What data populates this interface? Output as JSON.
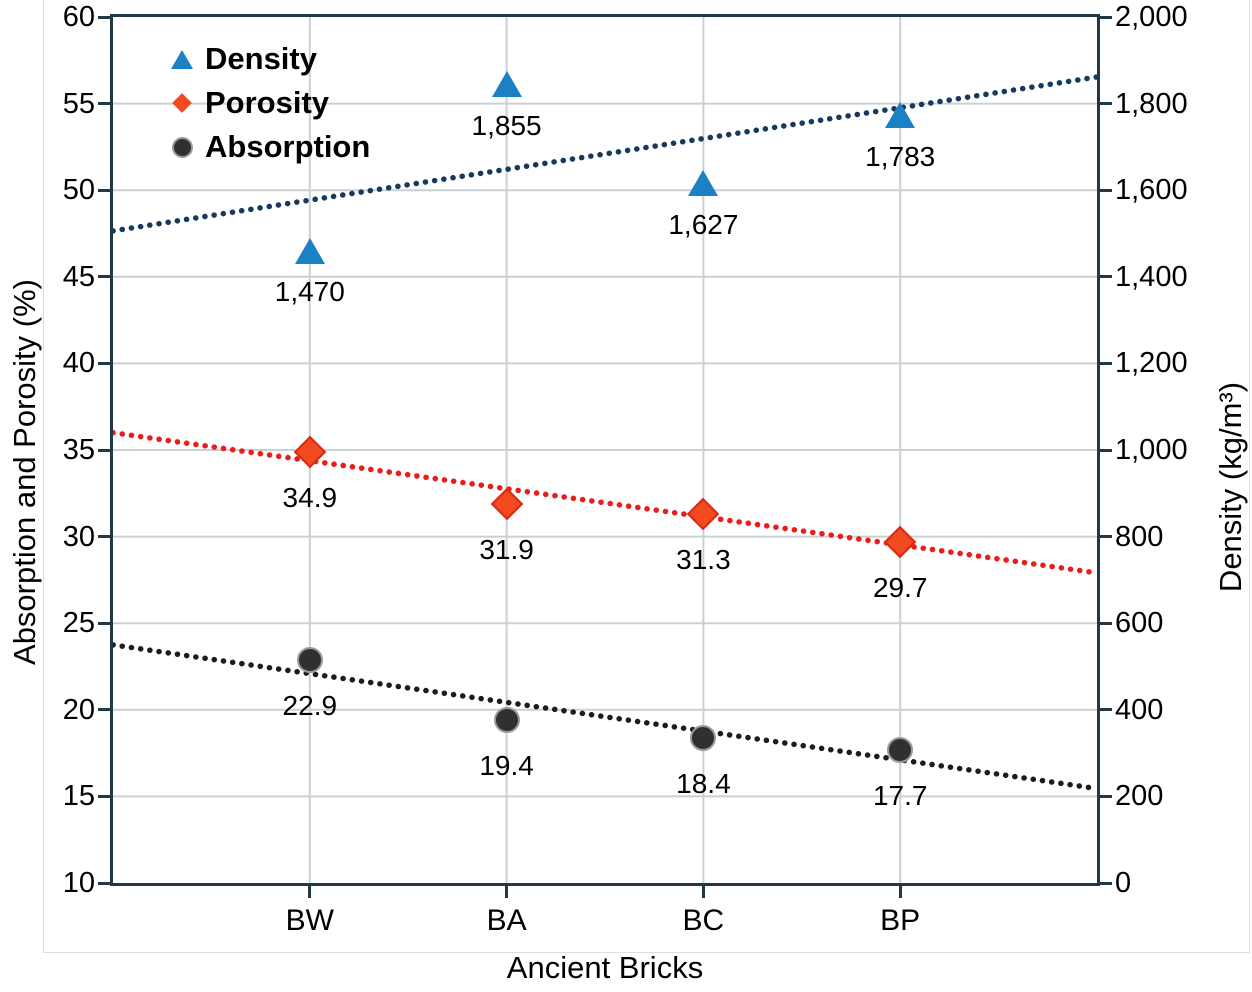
{
  "chart_data": {
    "type": "scatter",
    "title": "",
    "xlabel": "Ancient Bricks",
    "ylabel_left": "Absorption and Porosity (%)",
    "ylabel_right": "Density (kg/m³)",
    "categories": [
      "BW",
      "BA",
      "BC",
      "BP"
    ],
    "category_positions": [
      1,
      2,
      3,
      4
    ],
    "x_domain": [
      0,
      5
    ],
    "left_axis": {
      "min": 10,
      "max": 60,
      "step": 5,
      "tick_labels": [
        "60",
        "55",
        "50",
        "45",
        "40",
        "35",
        "30",
        "25",
        "20",
        "15",
        "10"
      ]
    },
    "right_axis": {
      "min": 0,
      "max": 2000,
      "step": 200,
      "tick_labels": [
        "2,000",
        "1,800",
        "1,600",
        "1,400",
        "1,200",
        "1,000",
        "800",
        "600",
        "400",
        "200",
        "0"
      ]
    },
    "grid": {
      "horizontal": true,
      "vertical": true,
      "color": "#cbd0d4"
    },
    "legend_position": "top-left",
    "series": [
      {
        "name": "Density",
        "axis": "right",
        "marker": "triangle",
        "marker_color": "#1b80c4",
        "trend_color": "#16395f",
        "trendline": "linear-dotted",
        "values": [
          1470,
          1855,
          1627,
          1783
        ],
        "point_labels": [
          "1,470",
          "1,855",
          "1,627",
          "1,783"
        ]
      },
      {
        "name": "Porosity",
        "axis": "left",
        "marker": "diamond",
        "marker_color": "#f3491f",
        "marker_edge": "#d92a16",
        "trend_color": "#ea1c1c",
        "trendline": "linear-dotted",
        "values": [
          34.9,
          31.9,
          31.3,
          29.7
        ],
        "point_labels": [
          "34.9",
          "31.9",
          "31.3",
          "29.7"
        ]
      },
      {
        "name": "Absorption",
        "axis": "left",
        "marker": "circle",
        "marker_color": "#303030",
        "trend_color": "#1c1c1c",
        "trendline": "linear-dotted",
        "values": [
          22.9,
          19.4,
          18.4,
          17.7
        ],
        "point_labels": [
          "22.9",
          "19.4",
          "18.4",
          "17.7"
        ]
      }
    ]
  }
}
